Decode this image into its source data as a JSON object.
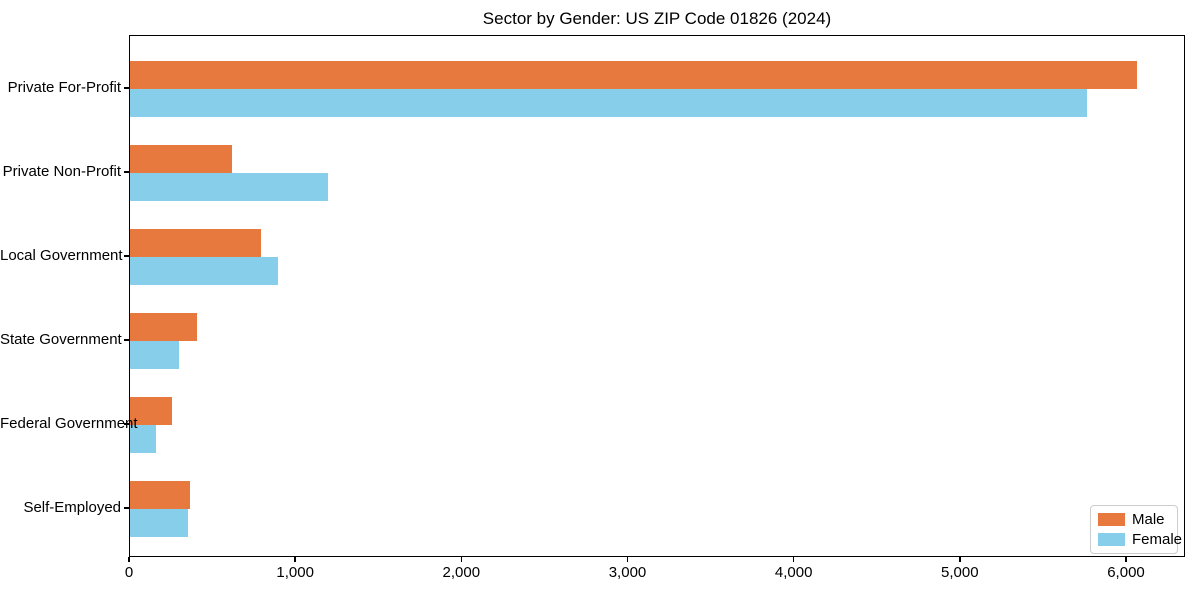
{
  "chart_data": {
    "type": "bar",
    "orientation": "horizontal",
    "title": "Sector by Gender: US ZIP Code 01826 (2024)",
    "categories": [
      "Private For-Profit",
      "Private Non-Profit",
      "Local Government",
      "State Government",
      "Federal Government",
      "Self-Employed"
    ],
    "series": [
      {
        "name": "Male",
        "color": "#E8793E",
        "values": [
          6060,
          615,
          790,
          405,
          250,
          360
        ]
      },
      {
        "name": "Female",
        "color": "#87CEEB",
        "values": [
          5760,
          1190,
          890,
          295,
          155,
          350
        ]
      }
    ],
    "xlabel": "",
    "ylabel": "",
    "xlim": [
      0,
      6355
    ],
    "xticks": [
      0,
      1000,
      2000,
      3000,
      4000,
      5000,
      6000
    ],
    "xtick_labels": [
      "0",
      "1,000",
      "2,000",
      "3,000",
      "4,000",
      "5,000",
      "6,000"
    ],
    "grid": false,
    "legend_position": "lower right",
    "background_color": "#ffffff",
    "frame_color": "#000000"
  }
}
